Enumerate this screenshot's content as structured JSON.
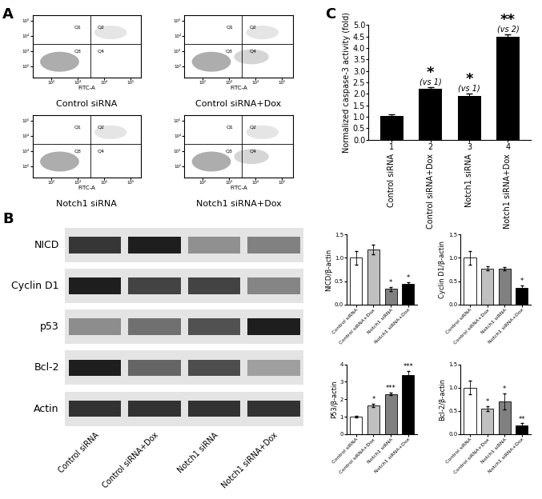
{
  "panel_labels": [
    "A",
    "B",
    "C"
  ],
  "flow_cytometry": {
    "type": "scatter",
    "xlabel": "FITC-A",
    "panels": [
      "Control siRNA",
      "Control siRNA+Dox",
      "Notch1 siRNA",
      "Notch1 siRNA+Dox"
    ],
    "quadrants": [
      "Q1",
      "Q2",
      "Q3",
      "Q4"
    ],
    "log": true,
    "xlim": [
      20,
      250000
    ],
    "ylim": [
      20,
      250000
    ],
    "xticks": [
      {
        "value": 100,
        "label": "10²"
      },
      {
        "value": 1000,
        "label": "10³"
      },
      {
        "value": 10000,
        "label": "10⁴"
      },
      {
        "value": 100000,
        "label": "10⁵"
      }
    ],
    "yticks": [
      {
        "value": 100,
        "label": "10²"
      },
      {
        "value": 1000,
        "label": "10³"
      },
      {
        "value": 10000,
        "label": "10⁴"
      },
      {
        "value": 100000,
        "label": "10⁵"
      }
    ],
    "gate": {
      "x": 3000,
      "y": 3000
    }
  },
  "western_blot": {
    "rows": [
      "NICD",
      "Cyclin D1",
      "p53",
      "Bcl-2",
      "Actin"
    ],
    "lanes": [
      "Control siRNA",
      "Control siRNA+Dox",
      "Notch1 siRNA",
      "Notch1 siRNA+Dox"
    ]
  },
  "chart_data": [
    {
      "type": "bar",
      "ylabel": "NICD/β-actin",
      "categories": [
        "Control siRNA",
        "Control siRNA+Dox",
        "Notch1 siRNA",
        "Notch1 siRNA+Dox"
      ],
      "values": [
        1.0,
        1.18,
        0.33,
        0.44
      ],
      "errors": [
        0.15,
        0.1,
        0.04,
        0.03
      ],
      "significance": [
        null,
        null,
        "*",
        "*"
      ],
      "colors": [
        "#ffffff",
        "#c0c0c0",
        "#808080",
        "#000000"
      ],
      "ylim": [
        0,
        1.5
      ],
      "yticks": [
        {
          "value": 0,
          "label": "0.0"
        },
        {
          "value": 0.5,
          "label": "0.5"
        },
        {
          "value": 1.0,
          "label": "1.0"
        },
        {
          "value": 1.5,
          "label": "1.5"
        }
      ]
    },
    {
      "type": "bar",
      "ylabel": "Cyclin D1/β-actin",
      "categories": [
        "Control siRNA",
        "Control siRNA+Dox",
        "Notch1 siRNA",
        "Notch1 siRNA+Dox"
      ],
      "values": [
        1.0,
        0.77,
        0.77,
        0.35
      ],
      "errors": [
        0.15,
        0.04,
        0.03,
        0.05
      ],
      "significance": [
        null,
        null,
        null,
        "*"
      ],
      "colors": [
        "#ffffff",
        "#c0c0c0",
        "#808080",
        "#000000"
      ],
      "ylim": [
        0,
        1.5
      ],
      "yticks": [
        {
          "value": 0,
          "label": "0.0"
        },
        {
          "value": 0.5,
          "label": "0.5"
        },
        {
          "value": 1.0,
          "label": "1.0"
        },
        {
          "value": 1.5,
          "label": "1.5"
        }
      ]
    },
    {
      "type": "bar",
      "ylabel": "P53/β-actin",
      "categories": [
        "Control siRNA",
        "Control siRNA+Dox",
        "Notch1 siRNA",
        "Notch1 siRNA+Dox"
      ],
      "values": [
        1.0,
        1.63,
        2.3,
        3.4
      ],
      "errors": [
        0.06,
        0.1,
        0.06,
        0.2
      ],
      "significance": [
        null,
        "*",
        "***",
        "***"
      ],
      "colors": [
        "#ffffff",
        "#c0c0c0",
        "#808080",
        "#000000"
      ],
      "ylim": [
        0,
        4
      ],
      "yticks": [
        0,
        1,
        2,
        3,
        4
      ]
    },
    {
      "type": "bar",
      "ylabel": "Bcl-2/β-actin",
      "categories": [
        "Control siRNA",
        "Control siRNA+Dox",
        "Notch1 siRNA",
        "Notch1 siRNA+Dox"
      ],
      "values": [
        1.0,
        0.55,
        0.7,
        0.18
      ],
      "errors": [
        0.15,
        0.05,
        0.17,
        0.05
      ],
      "significance": [
        null,
        "*",
        "*",
        "**"
      ],
      "colors": [
        "#ffffff",
        "#c0c0c0",
        "#808080",
        "#000000"
      ],
      "ylim": [
        0,
        1.5
      ],
      "yticks": [
        {
          "value": 0,
          "label": "0.0"
        },
        {
          "value": 0.5,
          "label": "0.5"
        },
        {
          "value": 1.0,
          "label": "1.0"
        },
        {
          "value": 1.5,
          "label": "1.5"
        }
      ]
    },
    {
      "type": "bar",
      "ylabel": "Normalized caspase-3 activity (fold)",
      "categories": [
        "Control siRNA",
        "Control siRNA+Dox",
        "Notch1 siRNA",
        "Notch1 siRNA+Dox"
      ],
      "index_labels": [
        "1",
        "2",
        "3",
        "4"
      ],
      "values": [
        1.03,
        2.22,
        1.92,
        4.48
      ],
      "errors": [
        0.08,
        0.08,
        0.1,
        0.12
      ],
      "significance": [
        null,
        "*",
        "*",
        "**"
      ],
      "comparisons": [
        null,
        "(vs 1)",
        "(vs 1)",
        "(vs 2)"
      ],
      "color": "#000000",
      "ylim": [
        0,
        5
      ],
      "yticks": [
        {
          "value": 0,
          "label": "0.0"
        },
        {
          "value": 0.5,
          "label": "0.5"
        },
        {
          "value": 1.0,
          "label": "1.0"
        },
        {
          "value": 1.5,
          "label": "1.5"
        },
        {
          "value": 2.0,
          "label": "2.0"
        },
        {
          "value": 2.5,
          "label": "2.5"
        },
        {
          "value": 3.0,
          "label": "3.0"
        },
        {
          "value": 3.5,
          "label": "3.5"
        },
        {
          "value": 4.0,
          "label": "4.0"
        },
        {
          "value": 4.5,
          "label": "4.5"
        },
        {
          "value": 5.0,
          "label": "5.0"
        }
      ]
    }
  ]
}
